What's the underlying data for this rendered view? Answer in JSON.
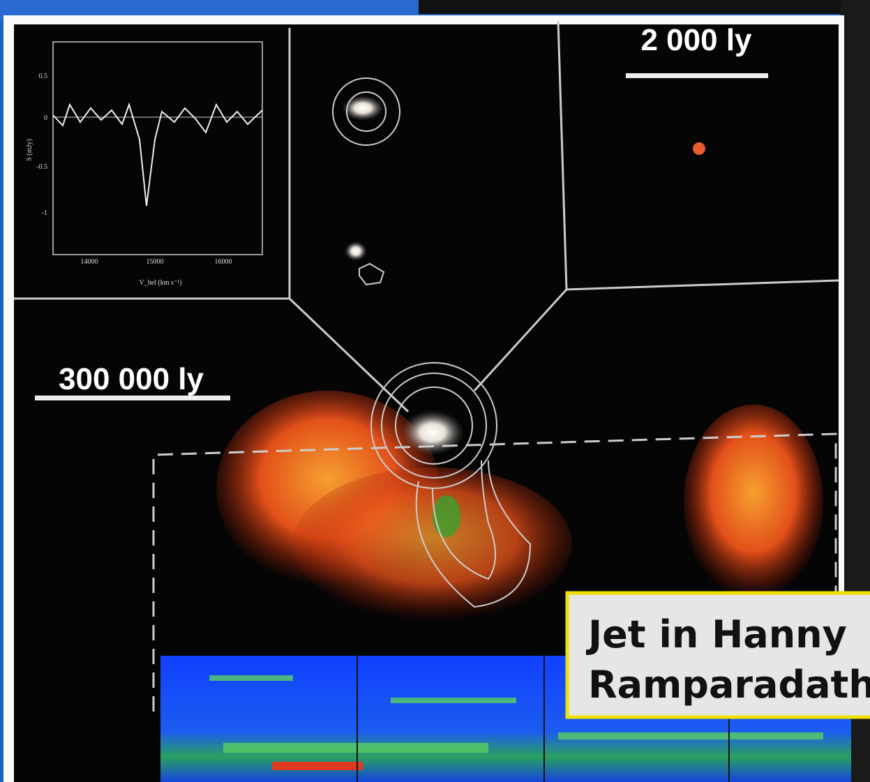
{
  "scale_bar_small": "2 000 ly",
  "scale_bar_large": "300 000 ly",
  "inset": {
    "y_label": "S (mJy)",
    "x_label": "V_hel (km s⁻¹)",
    "yticks": [
      "0.5",
      "0",
      "-0.5",
      "-1"
    ],
    "xticks": [
      "14000",
      "15000",
      "16000"
    ]
  },
  "caption": {
    "line1": "Jet in Hanny",
    "line2": "Ramparadath"
  }
}
